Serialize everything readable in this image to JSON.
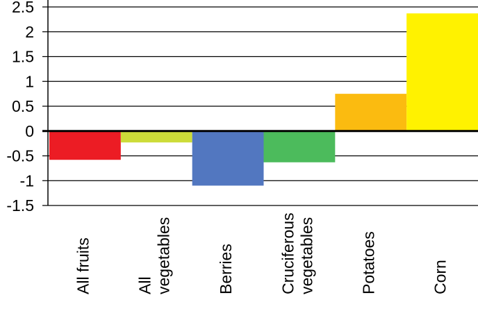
{
  "chart_data": {
    "type": "bar",
    "categories": [
      [
        "All fruits"
      ],
      [
        "All",
        "vegetables"
      ],
      [
        "Berries"
      ],
      [
        "Cruciferous",
        "vegetables"
      ],
      [
        "Potatoes"
      ],
      [
        "Corn"
      ]
    ],
    "values": [
      -0.58,
      -0.23,
      -1.1,
      -0.63,
      0.75,
      2.37
    ],
    "colors": [
      "#ec1c24",
      "#cddc39",
      "#5277c0",
      "#4cbb5c",
      "#fbbb10",
      "#fff200"
    ],
    "title": "",
    "xlabel": "",
    "ylabel": "",
    "ylim": [
      -1.5,
      2.5
    ],
    "yticks": [
      2.5,
      2,
      1.5,
      1,
      0.5,
      0,
      -0.5,
      -1,
      -1.5
    ],
    "ytick_labels": [
      "2.5",
      "2",
      "1.5",
      "1",
      "0.5",
      "0",
      "-0.5",
      "-1",
      "-1.5"
    ],
    "grid": true,
    "legend": "none"
  }
}
